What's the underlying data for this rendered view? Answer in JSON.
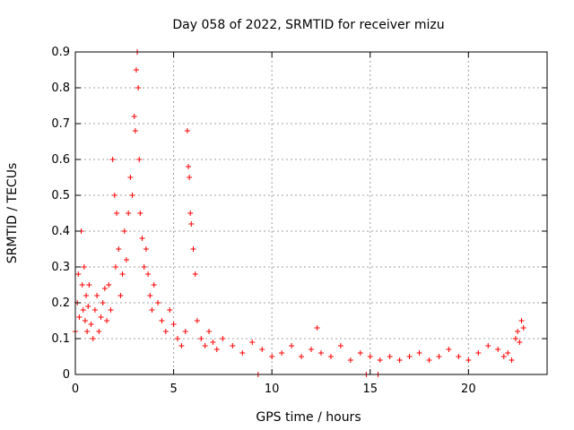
{
  "chart_data": {
    "type": "scatter",
    "title": "Day 058 of 2022, SRMTID for receiver mizu",
    "xlabel": "GPS time / hours",
    "ylabel": "SRMTID / TECUs",
    "xlim": [
      0,
      24
    ],
    "ylim": [
      0,
      0.9
    ],
    "xticks": [
      0,
      5,
      10,
      15,
      20
    ],
    "yticks": [
      0,
      0.1,
      0.2,
      0.3,
      0.4,
      0.5,
      0.6,
      0.7,
      0.8,
      0.9
    ],
    "xtick_labels": [
      "0",
      "5",
      "10",
      "15",
      "20"
    ],
    "ytick_labels": [
      "0",
      "0.1",
      "0.2",
      "0.3",
      "0.4",
      "0.5",
      "0.6",
      "0.7",
      "0.8",
      "0.9"
    ],
    "grid": true,
    "marker": "+",
    "color": "#ff0000",
    "series": [
      {
        "name": "SRMTID",
        "x": [
          0.0,
          0.1,
          0.15,
          0.2,
          0.3,
          0.35,
          0.4,
          0.45,
          0.5,
          0.55,
          0.6,
          0.65,
          0.7,
          0.8,
          0.9,
          1.0,
          1.1,
          1.2,
          1.3,
          1.4,
          1.5,
          1.6,
          1.7,
          1.8,
          1.9,
          2.0,
          2.05,
          2.1,
          2.2,
          2.3,
          2.4,
          2.5,
          2.6,
          2.7,
          2.8,
          2.9,
          3.0,
          3.05,
          3.1,
          3.15,
          3.2,
          3.25,
          3.3,
          3.4,
          3.5,
          3.6,
          3.7,
          3.8,
          3.9,
          4.0,
          4.2,
          4.4,
          4.6,
          4.8,
          5.0,
          5.2,
          5.4,
          5.6,
          5.7,
          5.75,
          5.8,
          5.85,
          5.9,
          6.0,
          6.1,
          6.2,
          6.4,
          6.6,
          6.8,
          7.0,
          7.2,
          7.5,
          8.0,
          8.5,
          9.0,
          9.3,
          9.5,
          10.0,
          10.5,
          11.0,
          11.5,
          12.0,
          12.3,
          12.5,
          13.0,
          13.5,
          14.0,
          14.5,
          14.8,
          15.0,
          15.4,
          15.5,
          16.0,
          16.5,
          17.0,
          17.5,
          18.0,
          18.5,
          19.0,
          19.5,
          20.0,
          20.5,
          21.0,
          21.5,
          21.8,
          22.0,
          22.2,
          22.4,
          22.5,
          22.6,
          22.7,
          22.8
        ],
        "y": [
          0.12,
          0.2,
          0.28,
          0.16,
          0.4,
          0.25,
          0.18,
          0.3,
          0.15,
          0.22,
          0.12,
          0.19,
          0.25,
          0.14,
          0.1,
          0.18,
          0.22,
          0.12,
          0.16,
          0.2,
          0.24,
          0.15,
          0.25,
          0.18,
          0.6,
          0.5,
          0.3,
          0.45,
          0.35,
          0.22,
          0.28,
          0.4,
          0.32,
          0.45,
          0.55,
          0.5,
          0.72,
          0.68,
          0.85,
          0.9,
          0.8,
          0.6,
          0.45,
          0.38,
          0.3,
          0.35,
          0.28,
          0.22,
          0.18,
          0.25,
          0.2,
          0.15,
          0.12,
          0.18,
          0.14,
          0.1,
          0.08,
          0.12,
          0.68,
          0.58,
          0.55,
          0.45,
          0.42,
          0.35,
          0.28,
          0.15,
          0.1,
          0.08,
          0.12,
          0.09,
          0.07,
          0.1,
          0.08,
          0.06,
          0.09,
          0.0,
          0.07,
          0.05,
          0.06,
          0.08,
          0.05,
          0.07,
          0.13,
          0.06,
          0.05,
          0.08,
          0.04,
          0.06,
          0.0,
          0.05,
          0.0,
          0.04,
          0.05,
          0.04,
          0.05,
          0.06,
          0.04,
          0.05,
          0.07,
          0.05,
          0.04,
          0.06,
          0.08,
          0.07,
          0.05,
          0.06,
          0.04,
          0.1,
          0.12,
          0.09,
          0.15,
          0.13
        ]
      }
    ]
  }
}
